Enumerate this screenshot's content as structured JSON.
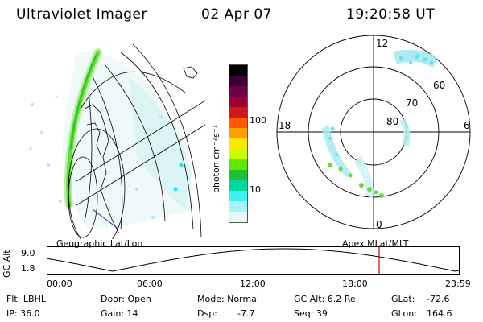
{
  "header": {
    "title": "Ultraviolet Imager",
    "date": "02 Apr 07",
    "time": "19:20:58 UT"
  },
  "colorbar": {
    "label": "photon cm⁻²s⁻¹",
    "ticks": [
      "100",
      "10"
    ],
    "colors": [
      "#000000",
      "#3a0030",
      "#6a0048",
      "#a00030",
      "#d01818",
      "#ff5a00",
      "#ffa000",
      "#ffe800",
      "#c8ff00",
      "#60e800",
      "#20c030",
      "#00d8a0",
      "#40f0f0",
      "#a8f4f4",
      "#e8f8f8"
    ]
  },
  "geo_panel": {
    "label": "Geographic Lat/Lon"
  },
  "polar_panel": {
    "label": "Apex MLat/MLT",
    "lat_labels": [
      "60",
      "70",
      "80"
    ],
    "mlt_labels": {
      "top": "12",
      "left": "18",
      "right": "6",
      "bottom": "0"
    }
  },
  "altitude_plot": {
    "ylabel": "GC Alt",
    "yticks": [
      "9.0",
      "1.8"
    ],
    "xticks": [
      "00:00",
      "06:00",
      "12:00",
      "18:00",
      "23:59"
    ],
    "current_time_hours": 19.35
  },
  "footer": {
    "row1": {
      "filter": "Flt: LBHL",
      "door": "Door: Open",
      "mode": "Mode: Normal",
      "gc_alt": "GC Alt: 6.2 Re",
      "glat_label": "GLat:",
      "glat_value": "-72.6"
    },
    "row2": {
      "ip": "IP: 36.0",
      "gain": "Gain: 14",
      "dsp_label": "Dsp:",
      "dsp_value": "-7.7",
      "seq": "Seq: 39",
      "glon_label": "GLon:",
      "glon_value": "164.6"
    }
  },
  "colors": {
    "accent_red": "#cc0000",
    "aurora_green": "#44dd22",
    "cyan": "#33dddd"
  }
}
